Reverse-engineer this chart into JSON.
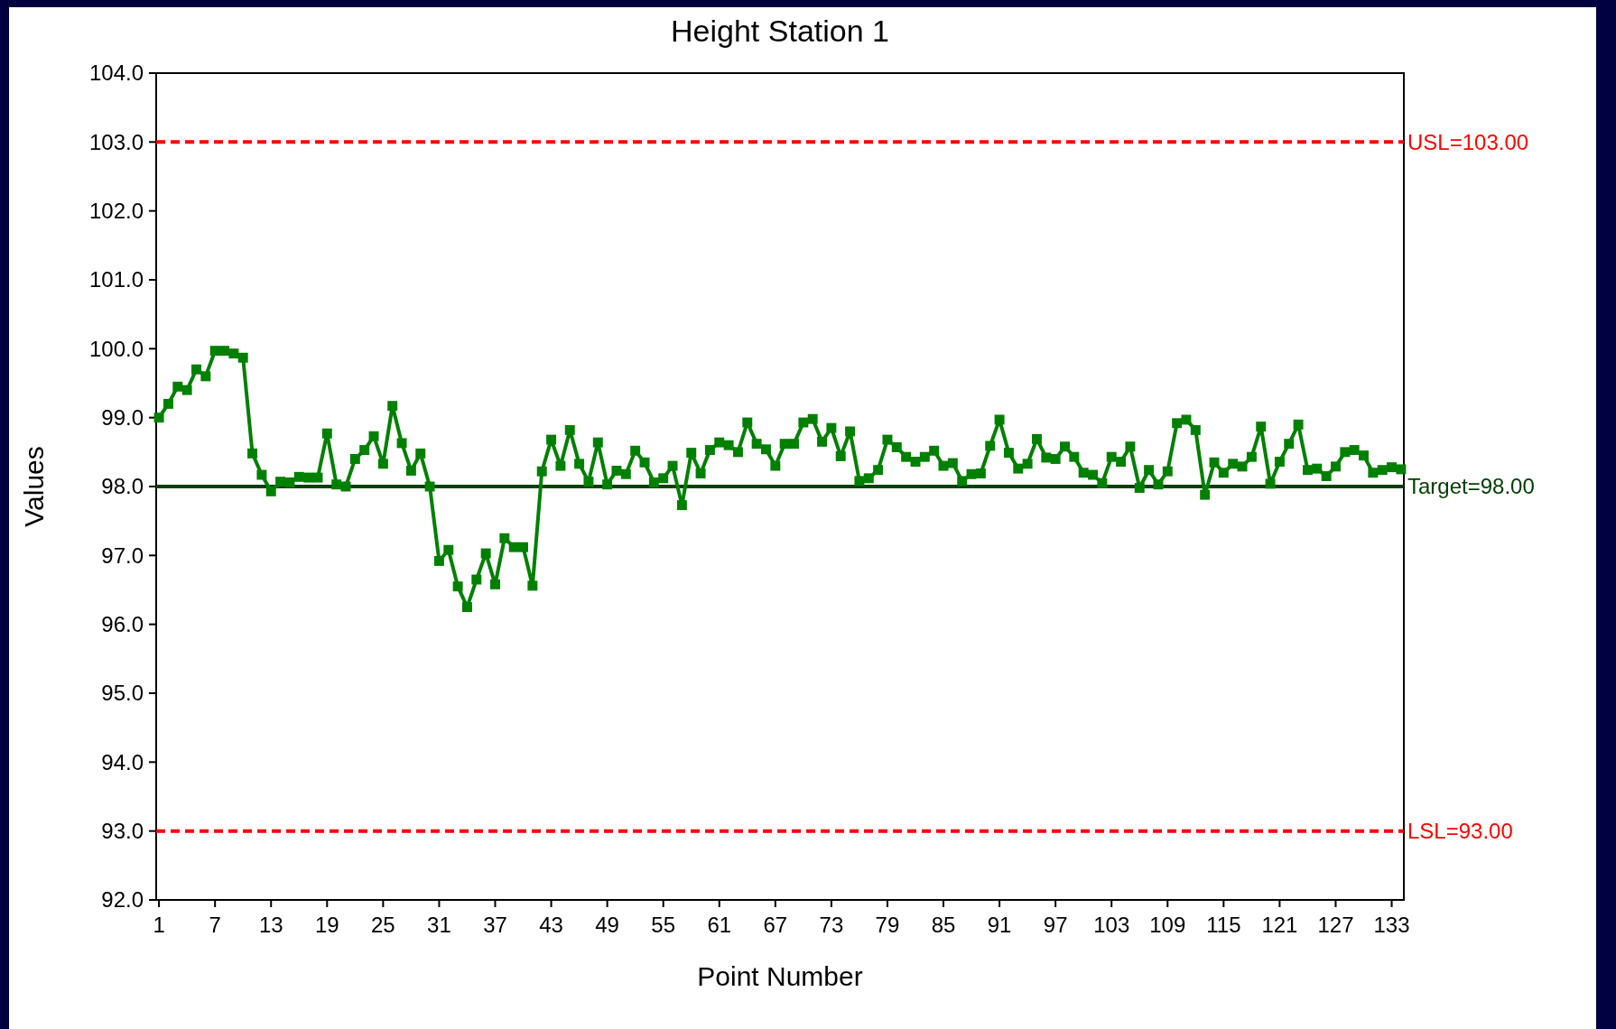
{
  "chart_data": {
    "type": "line",
    "title": "Height Station 1",
    "xlabel": "Point Number",
    "ylabel": "Values",
    "x": [
      1,
      2,
      3,
      4,
      5,
      6,
      7,
      8,
      9,
      10,
      11,
      12,
      13,
      14,
      15,
      16,
      17,
      18,
      19,
      20,
      21,
      22,
      23,
      24,
      25,
      26,
      27,
      28,
      29,
      30,
      31,
      32,
      33,
      34,
      35,
      36,
      37,
      38,
      39,
      40,
      41,
      42,
      43,
      44,
      45,
      46,
      47,
      48,
      49,
      50,
      51,
      52,
      53,
      54,
      55,
      56,
      57,
      58,
      59,
      60,
      61,
      62,
      63,
      64,
      65,
      66,
      67,
      68,
      69,
      70,
      71,
      72,
      73,
      74,
      75,
      76,
      77,
      78,
      79,
      80,
      81,
      82,
      83,
      84,
      85,
      86,
      87,
      88,
      89,
      90,
      91,
      92,
      93,
      94,
      95,
      96,
      97,
      98,
      99,
      100,
      101,
      102,
      103,
      104,
      105,
      106,
      107,
      108,
      109,
      110,
      111,
      112,
      113,
      114,
      115,
      116,
      117,
      118,
      119,
      120,
      121,
      122,
      123,
      124,
      125,
      126,
      127,
      128,
      129,
      130,
      131,
      132,
      133,
      134
    ],
    "series": [
      {
        "color": "#008000",
        "values": [
          99.0,
          99.2,
          99.45,
          99.4,
          99.7,
          99.6,
          99.97,
          99.97,
          99.93,
          99.87,
          98.48,
          98.17,
          97.93,
          98.07,
          98.06,
          98.14,
          98.13,
          98.13,
          98.77,
          98.03,
          98.0,
          98.4,
          98.53,
          98.73,
          98.33,
          99.17,
          98.63,
          98.23,
          98.48,
          98.0,
          96.92,
          97.08,
          96.55,
          96.25,
          96.65,
          97.03,
          96.58,
          97.25,
          97.12,
          97.12,
          96.56,
          98.22,
          98.68,
          98.3,
          98.82,
          98.33,
          98.07,
          98.64,
          98.03,
          98.23,
          98.18,
          98.52,
          98.35,
          98.06,
          98.12,
          98.3,
          97.73,
          98.49,
          98.19,
          98.53,
          98.64,
          98.6,
          98.5,
          98.93,
          98.62,
          98.54,
          98.3,
          98.62,
          98.62,
          98.93,
          98.98,
          98.65,
          98.85,
          98.44,
          98.8,
          98.08,
          98.12,
          98.24,
          98.68,
          98.57,
          98.43,
          98.36,
          98.43,
          98.52,
          98.3,
          98.34,
          98.08,
          98.18,
          98.19,
          98.59,
          98.97,
          98.49,
          98.26,
          98.33,
          98.69,
          98.42,
          98.4,
          98.58,
          98.43,
          98.2,
          98.17,
          98.05,
          98.43,
          98.36,
          98.58,
          97.98,
          98.24,
          98.03,
          98.22,
          98.92,
          98.97,
          98.82,
          97.88,
          98.35,
          98.2,
          98.33,
          98.29,
          98.43,
          98.87,
          98.04,
          98.36,
          98.62,
          98.9,
          98.24,
          98.26,
          98.15,
          98.29,
          98.5,
          98.53,
          98.45,
          98.2,
          98.24,
          98.28,
          98.25
        ]
      }
    ],
    "marker": "square",
    "line_style": "solid",
    "grid": false,
    "xlim": [
      0.7,
      134.3
    ],
    "xticks": [
      1,
      7,
      13,
      19,
      25,
      31,
      37,
      43,
      49,
      55,
      61,
      67,
      73,
      79,
      85,
      91,
      97,
      103,
      109,
      115,
      121,
      127,
      133
    ],
    "ylim": [
      92,
      104
    ],
    "yticks": [
      {
        "value": 92,
        "label": "92.0"
      },
      {
        "value": 93,
        "label": "93.0"
      },
      {
        "value": 94,
        "label": "94.0"
      },
      {
        "value": 95,
        "label": "95.0"
      },
      {
        "value": 96,
        "label": "96.0"
      },
      {
        "value": 97,
        "label": "97.0"
      },
      {
        "value": 98,
        "label": "98.0"
      },
      {
        "value": 99,
        "label": "99.0"
      },
      {
        "value": 100,
        "label": "100.0"
      },
      {
        "value": 101,
        "label": "101.0"
      },
      {
        "value": 102,
        "label": "102.0"
      },
      {
        "value": 103,
        "label": "103.0"
      },
      {
        "value": 104,
        "label": "104.0"
      }
    ],
    "ref_lines": [
      {
        "axis": "y",
        "value": 103,
        "label": "USL=103.00",
        "color": "#ff0000",
        "line_style": "dashed"
      },
      {
        "axis": "y",
        "value": 98,
        "label": "Target=98.00",
        "color": "#004000",
        "line_style": "solid"
      },
      {
        "axis": "y",
        "value": 93,
        "label": "LSL=93.00",
        "color": "#ff0000",
        "line_style": "dashed"
      }
    ]
  }
}
